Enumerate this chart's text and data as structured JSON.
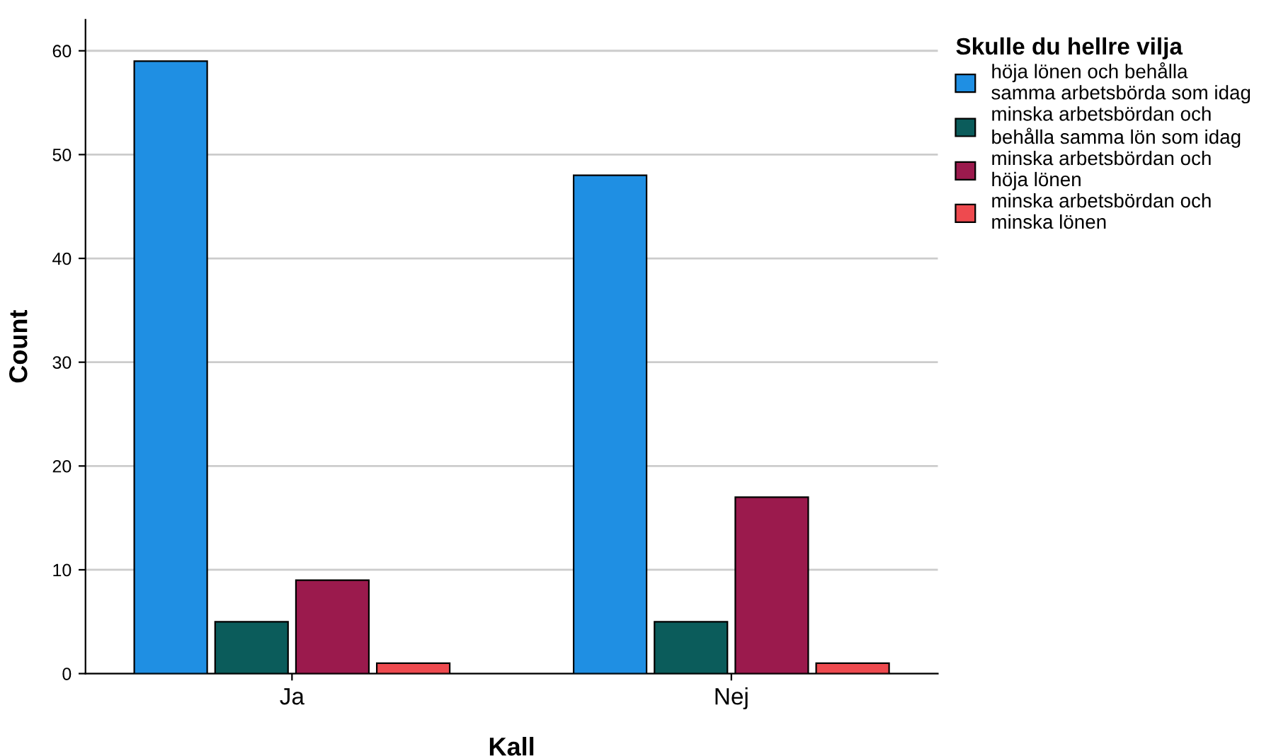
{
  "chart_data": {
    "type": "bar",
    "xlabel": "Kall",
    "ylabel": "Count",
    "legend_title": "Skulle du hellre vilja",
    "categories": [
      "Ja",
      "Nej"
    ],
    "series": [
      {
        "name": "höja lönen och behålla\nsamma arbetsbörda som idag",
        "color": "#1f8fe3",
        "values": [
          59,
          48
        ]
      },
      {
        "name": "minska arbetsbördan och\nbehålla samma lön som idag",
        "color": "#0b5c5b",
        "values": [
          5,
          5
        ]
      },
      {
        "name": "minska arbetsbördan och\nhöja lönen",
        "color": "#9b1a4d",
        "values": [
          9,
          17
        ]
      },
      {
        "name": "minska arbetsbördan och\nminska lönen",
        "color": "#ee4a4f",
        "values": [
          1,
          1
        ]
      }
    ],
    "ylim": [
      0,
      63
    ],
    "yticks": [
      0,
      10,
      20,
      30,
      40,
      50,
      60
    ],
    "grid": "y",
    "legend": "top right"
  }
}
